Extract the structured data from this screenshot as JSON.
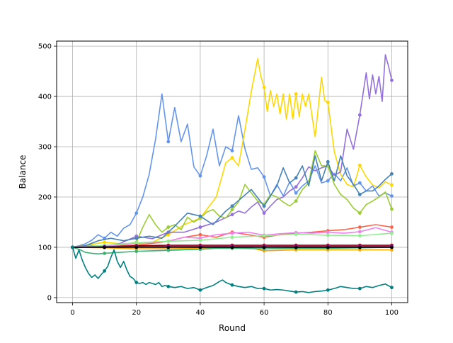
{
  "chart_data": {
    "type": "line",
    "title": "",
    "xlabel": "Round",
    "ylabel": "Balance",
    "xlim": [
      -5,
      105
    ],
    "ylim": [
      -10,
      510
    ],
    "xticks": [
      0,
      20,
      40,
      60,
      80,
      100
    ],
    "yticks": [
      0,
      100,
      200,
      300,
      400,
      500
    ],
    "grid": true,
    "legend": "none",
    "marker_every": 10,
    "series": [
      {
        "color": "#6495ed",
        "x": [
          0,
          2,
          4,
          6,
          8,
          10,
          12,
          14,
          16,
          18,
          20,
          22,
          24,
          26,
          28,
          30,
          32,
          34,
          36,
          38,
          40,
          42,
          44,
          46,
          48,
          50,
          52,
          54,
          56,
          58,
          60,
          62,
          64,
          66,
          68,
          70,
          72,
          74,
          76,
          78,
          80,
          82,
          84,
          86,
          88,
          90,
          92,
          94,
          96,
          98,
          100
        ],
        "y": [
          100,
          103,
          107,
          114,
          125,
          118,
          130,
          122,
          138,
          145,
          168,
          200,
          245,
          315,
          405,
          310,
          378,
          310,
          345,
          260,
          242,
          282,
          335,
          262,
          300,
          292,
          362,
          296,
          255,
          258,
          240,
          202,
          225,
          202,
          230,
          208,
          222,
          232,
          262,
          228,
          232,
          247,
          232,
          258,
          222,
          228,
          212,
          222,
          202,
          208,
          202
        ]
      },
      {
        "color": "#ffd700",
        "x": [
          0,
          5,
          10,
          15,
          20,
          25,
          30,
          35,
          40,
          45,
          48,
          50,
          52,
          54,
          56,
          58,
          59,
          60,
          61,
          62,
          63,
          64,
          65,
          66,
          67,
          68,
          69,
          70,
          71,
          72,
          73,
          74,
          76,
          78,
          79,
          80,
          82,
          84,
          86,
          88,
          90,
          92,
          94,
          96,
          98,
          100
        ],
        "y": [
          100,
          105,
          110,
          107,
          107,
          110,
          125,
          145,
          158,
          200,
          268,
          278,
          262,
          333,
          410,
          475,
          440,
          418,
          370,
          412,
          380,
          405,
          365,
          405,
          355,
          405,
          355,
          405,
          360,
          405,
          380,
          405,
          320,
          438,
          392,
          388,
          290,
          245,
          225,
          220,
          263,
          240,
          224,
          218,
          230,
          224
        ]
      },
      {
        "color": "#9370db",
        "x": [
          0,
          5,
          10,
          15,
          20,
          25,
          30,
          35,
          40,
          45,
          50,
          52,
          54,
          56,
          58,
          60,
          62,
          64,
          66,
          68,
          70,
          72,
          74,
          76,
          78,
          80,
          82,
          84,
          86,
          88,
          90,
          92,
          93,
          94,
          95,
          96,
          97,
          98,
          99,
          100
        ],
        "y": [
          100,
          104,
          100,
          108,
          122,
          117,
          130,
          130,
          140,
          150,
          165,
          172,
          168,
          180,
          190,
          168,
          182,
          195,
          200,
          212,
          220,
          238,
          260,
          252,
          258,
          262,
          243,
          250,
          335,
          295,
          363,
          447,
          395,
          443,
          405,
          440,
          390,
          483,
          460,
          432
        ]
      },
      {
        "color": "#9acd32",
        "x": [
          0,
          5,
          10,
          15,
          20,
          22,
          24,
          26,
          28,
          30,
          32,
          34,
          36,
          38,
          40,
          42,
          44,
          46,
          48,
          50,
          52,
          54,
          56,
          58,
          60,
          62,
          64,
          66,
          68,
          70,
          72,
          74,
          76,
          78,
          80,
          82,
          84,
          86,
          88,
          90,
          92,
          94,
          96,
          98,
          100
        ],
        "y": [
          100,
          103,
          100,
          105,
          110,
          140,
          165,
          145,
          130,
          140,
          145,
          135,
          160,
          150,
          158,
          170,
          175,
          162,
          158,
          175,
          190,
          225,
          208,
          192,
          185,
          205,
          200,
          190,
          182,
          192,
          215,
          228,
          292,
          262,
          262,
          225,
          205,
          195,
          178,
          168,
          185,
          192,
          200,
          210,
          176
        ]
      },
      {
        "color": "#4682b4",
        "x": [
          0,
          4,
          8,
          12,
          16,
          20,
          24,
          28,
          32,
          36,
          40,
          44,
          48,
          50,
          52,
          56,
          60,
          62,
          64,
          66,
          68,
          70,
          72,
          74,
          76,
          78,
          80,
          82,
          84,
          86,
          88,
          90,
          92,
          94,
          96,
          98,
          100
        ],
        "y": [
          100,
          103,
          113,
          118,
          113,
          118,
          122,
          118,
          142,
          168,
          162,
          145,
          172,
          182,
          193,
          215,
          182,
          202,
          222,
          258,
          228,
          238,
          262,
          222,
          282,
          232,
          270,
          232,
          282,
          242,
          225,
          205,
          212,
          212,
          222,
          235,
          246
        ]
      },
      {
        "color": "#ff6347",
        "x": [
          0,
          5,
          10,
          15,
          20,
          25,
          30,
          35,
          40,
          45,
          50,
          55,
          60,
          65,
          70,
          75,
          80,
          85,
          90,
          95,
          100
        ],
        "y": [
          100,
          102,
          101,
          103,
          104,
          108,
          112,
          120,
          125,
          120,
          130,
          125,
          120,
          125,
          128,
          130,
          133,
          135,
          140,
          145,
          140
        ]
      },
      {
        "color": "#ee82ee",
        "x": [
          0,
          10,
          20,
          25,
          30,
          35,
          40,
          45,
          50,
          55,
          60,
          65,
          70,
          75,
          80,
          85,
          90,
          95,
          100
        ],
        "y": [
          100,
          102,
          108,
          110,
          112,
          120,
          118,
          125,
          128,
          130,
          124,
          127,
          129,
          128,
          130,
          128,
          131,
          139,
          130
        ]
      },
      {
        "color": "#90ee90",
        "x": [
          0,
          10,
          20,
          30,
          40,
          50,
          60,
          70,
          80,
          90,
          100
        ],
        "y": [
          100,
          104,
          109,
          112,
          114,
          120,
          123,
          126,
          124,
          123,
          128
        ]
      },
      {
        "color": "#ffa500",
        "x": [
          0,
          10,
          20,
          30,
          40,
          50,
          55,
          60,
          70,
          80,
          90,
          100
        ],
        "y": [
          100,
          99,
          97,
          97,
          98,
          98,
          100,
          93,
          95,
          95,
          95,
          95
        ]
      },
      {
        "color": "#3cb371",
        "x": [
          0,
          2,
          4,
          6,
          8,
          10,
          15,
          20,
          25,
          30,
          35,
          40,
          45,
          50,
          60,
          70,
          80,
          90,
          100
        ],
        "y": [
          100,
          96,
          90,
          88,
          87,
          88,
          90,
          92,
          93,
          94,
          95,
          96,
          98,
          98,
          97,
          98,
          98,
          99,
          100
        ]
      },
      {
        "color": "#8b0000",
        "x": [
          0,
          10,
          20,
          30,
          40,
          50,
          60,
          70,
          80,
          90,
          100
        ],
        "y": [
          100,
          101,
          103,
          104,
          104,
          104,
          104,
          104,
          104,
          104,
          104
        ]
      },
      {
        "color": "#ff1493",
        "x": [
          0,
          10,
          20,
          30,
          40,
          50,
          60,
          70,
          80,
          90,
          100
        ],
        "y": [
          100,
          101,
          101,
          102,
          102,
          102,
          102,
          102,
          102,
          102,
          102
        ]
      },
      {
        "color": "#9400d3",
        "x": [
          0,
          10,
          20,
          30,
          40,
          50,
          60,
          70,
          80,
          90,
          100
        ],
        "y": [
          100,
          101,
          101,
          101,
          101,
          101,
          101,
          101,
          101,
          101,
          101
        ]
      },
      {
        "color": "#000000",
        "x": [
          0,
          10,
          20,
          30,
          40,
          50,
          60,
          70,
          80,
          90,
          100
        ],
        "y": [
          100,
          100,
          100,
          100,
          100,
          100,
          100,
          100,
          100,
          100,
          100
        ]
      },
      {
        "color": "#008080",
        "x": [
          0,
          1,
          2,
          3,
          4,
          5,
          6,
          7,
          8,
          9,
          10,
          11,
          12,
          13,
          14,
          15,
          16,
          17,
          18,
          19,
          20,
          21,
          22,
          23,
          24,
          25,
          26,
          27,
          28,
          29,
          30,
          32,
          34,
          36,
          38,
          40,
          42,
          44,
          45,
          46,
          47,
          48,
          50,
          52,
          54,
          56,
          58,
          60,
          62,
          64,
          66,
          68,
          70,
          72,
          74,
          76,
          78,
          80,
          82,
          84,
          86,
          88,
          90,
          92,
          94,
          96,
          98,
          100
        ],
        "y": [
          100,
          78,
          95,
          75,
          60,
          48,
          40,
          45,
          38,
          46,
          53,
          62,
          80,
          95,
          72,
          60,
          72,
          55,
          42,
          38,
          30,
          28,
          30,
          26,
          30,
          28,
          26,
          30,
          22,
          24,
          22,
          20,
          22,
          18,
          20,
          15,
          20,
          24,
          28,
          32,
          35,
          30,
          25,
          22,
          20,
          22,
          18,
          18,
          15,
          16,
          15,
          13,
          11,
          12,
          10,
          12,
          13,
          15,
          18,
          22,
          20,
          18,
          18,
          22,
          20,
          24,
          27,
          20
        ]
      }
    ]
  }
}
